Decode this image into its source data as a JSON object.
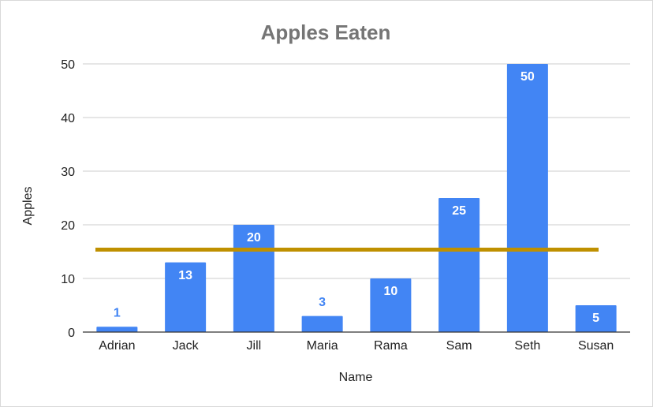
{
  "chart_data": {
    "type": "bar",
    "title": "Apples Eaten",
    "xlabel": "Name",
    "ylabel": "Apples",
    "categories": [
      "Adrian",
      "Jack",
      "Jill",
      "Maria",
      "Rama",
      "Sam",
      "Seth",
      "Susan"
    ],
    "values": [
      1,
      13,
      20,
      3,
      10,
      25,
      50,
      5
    ],
    "data_labels": [
      "1",
      "13",
      "20",
      "3",
      "10",
      "25",
      "50",
      "5"
    ],
    "ylim": [
      0,
      50
    ],
    "yticks": [
      0,
      10,
      20,
      30,
      40,
      50
    ],
    "ytick_labels": [
      "0",
      "10",
      "20",
      "30",
      "40",
      "50"
    ],
    "reference_line": {
      "value": 15.375
    },
    "grid": true,
    "legend": "none",
    "colors": {
      "bar": "#4285f4",
      "reference_line": "#bf9000",
      "title": "#757575",
      "grid": "#cccccc",
      "axis": "#333333",
      "outside_label": "#4285f4",
      "inside_label": "#ffffff"
    }
  }
}
